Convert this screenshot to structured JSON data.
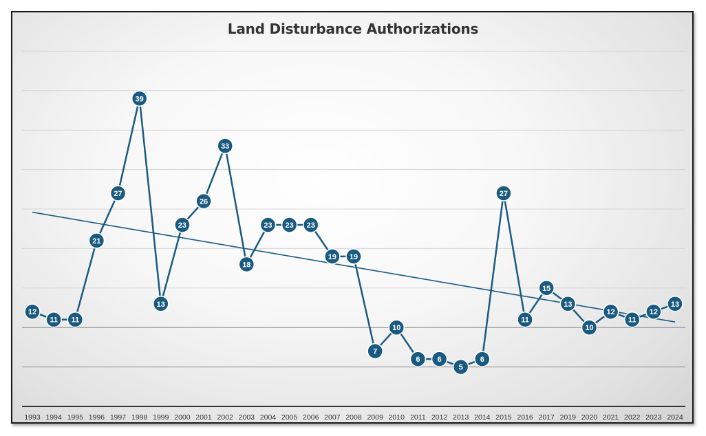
{
  "chart_data": {
    "type": "line",
    "title": "Land Disturbance Authorizations",
    "xlabel": "",
    "ylabel": "",
    "categories": [
      "1993",
      "1994",
      "1995",
      "1996",
      "1997",
      "1998",
      "1999",
      "2000",
      "2001",
      "2002",
      "2003",
      "2004",
      "2005",
      "2006",
      "2007",
      "2008",
      "2009",
      "2010",
      "2011",
      "2012",
      "2013",
      "2014",
      "2015",
      "2016",
      "2017",
      "2019",
      "2020",
      "2021",
      "2022",
      "2023",
      "2024"
    ],
    "series": [
      {
        "values": [
          12,
          11,
          11,
          21,
          27,
          39,
          13,
          23,
          26,
          33,
          18,
          23,
          23,
          23,
          19,
          19,
          7,
          10,
          6,
          6,
          5,
          6,
          27,
          11,
          15,
          13,
          10,
          12,
          11,
          12,
          13
        ]
      }
    ],
    "trendline": {
      "type": "linear",
      "start": 24.6,
      "end": 10.7
    },
    "ylim": [
      0,
      45
    ],
    "y_gridlines": [
      5,
      10,
      15,
      20,
      25,
      30,
      35,
      40,
      45
    ],
    "y_tick_labels_shown": false,
    "grid": true,
    "legend": "none",
    "data_labels": true,
    "colors": {
      "series": "#1b5a80",
      "label_text": "#ffffff",
      "background": "#e9e9e9"
    }
  }
}
